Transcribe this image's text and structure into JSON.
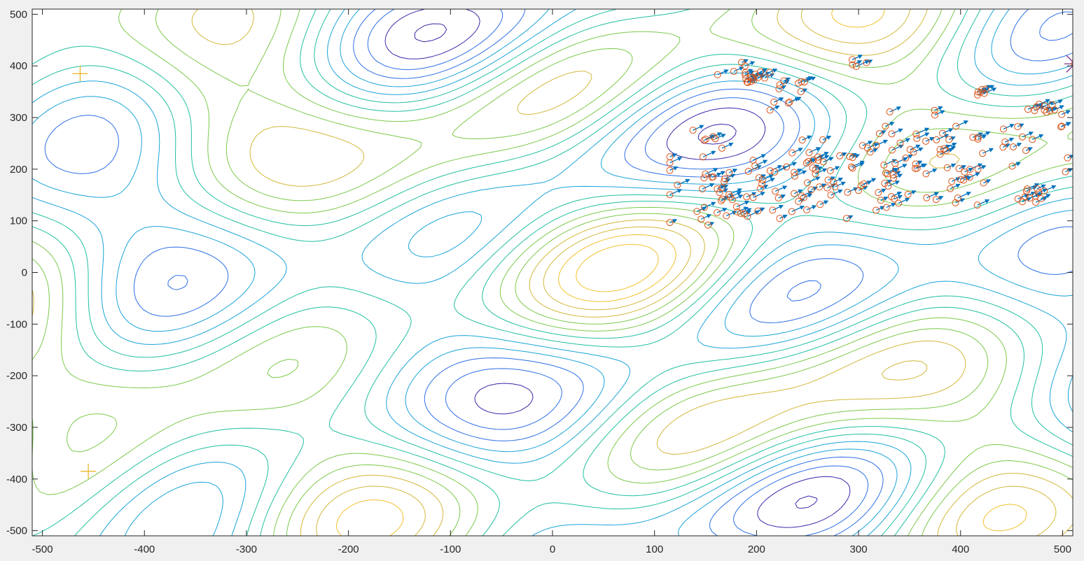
{
  "chart_data": {
    "type": "contour",
    "xlim": [
      -510,
      510
    ],
    "ylim": [
      -510,
      510
    ],
    "x_ticks": [
      -500,
      -400,
      -300,
      -200,
      -100,
      0,
      100,
      200,
      300,
      400,
      500
    ],
    "y_ticks": [
      500,
      400,
      300,
      200,
      100,
      0,
      -100,
      -200,
      -300,
      -400,
      -500
    ],
    "x_tick_labels": [
      "-500",
      "-400",
      "-300",
      "-200",
      "-100",
      "0",
      "100",
      "200",
      "300",
      "400",
      "500"
    ],
    "y_tick_labels": [
      "500",
      "400",
      "300",
      "200",
      "100",
      "0",
      "-100",
      "-200",
      "-300",
      "-400",
      "-500"
    ],
    "grid": false,
    "colors": {
      "contour_levels": [
        "#3d26a8",
        "#2c6fe6",
        "#1aa4d8",
        "#21bfa0",
        "#7cc94c",
        "#d2b83c",
        "#f2c12e"
      ],
      "particles": "#d95319",
      "velocity": "#0072bd",
      "best": "#7e2f8e"
    },
    "optima": [
      {
        "x": -463,
        "y": 385
      },
      {
        "x": -455,
        "y": -385
      }
    ],
    "global_best": {
      "x": 512,
      "y": 404
    },
    "swarm": {
      "clusters": [
        {
          "cx": 175,
          "cy": 395,
          "n": 6
        },
        {
          "cx": 235,
          "cy": 360,
          "n": 7
        },
        {
          "cx": 415,
          "cy": 352,
          "n": 6
        },
        {
          "cx": 480,
          "cy": 322,
          "n": 9
        },
        {
          "cx": 150,
          "cy": 265,
          "n": 5
        },
        {
          "cx": 300,
          "cy": 410,
          "n": 4
        },
        {
          "cx": 220,
          "cy": 322,
          "n": 4
        },
        {
          "cx": 330,
          "cy": 200,
          "n": 60
        },
        {
          "cx": 240,
          "cy": 170,
          "n": 55
        },
        {
          "cx": 420,
          "cy": 250,
          "n": 35
        },
        {
          "cx": 470,
          "cy": 150,
          "n": 12
        },
        {
          "cx": 200,
          "cy": 380,
          "n": 12
        },
        {
          "cx": 170,
          "cy": 160,
          "n": 25
        }
      ]
    }
  }
}
